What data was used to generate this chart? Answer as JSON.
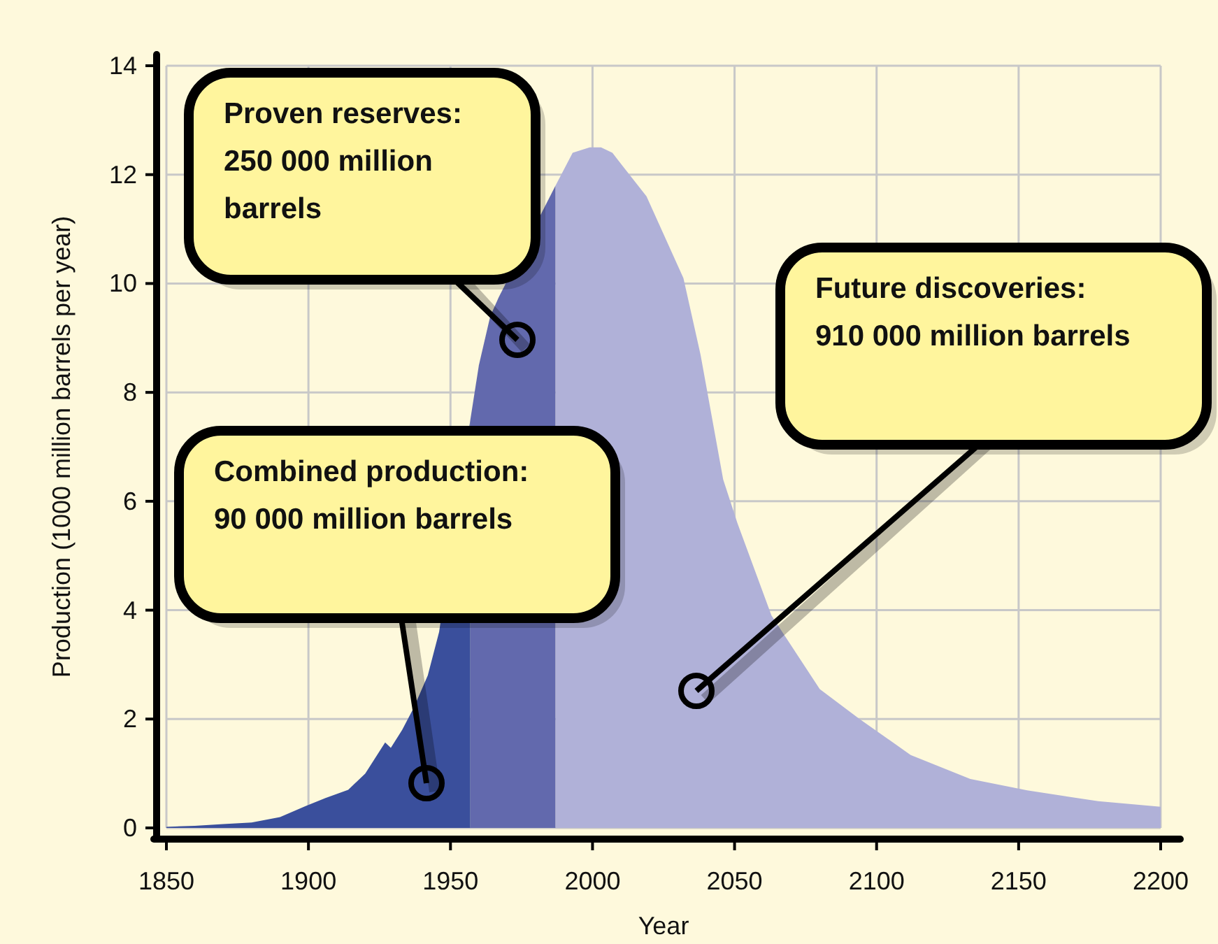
{
  "chart_data": {
    "type": "area",
    "xlabel": "Year",
    "ylabel": "Production (1000 million barrels per year)",
    "xlim": [
      1850,
      2200
    ],
    "ylim": [
      0,
      14
    ],
    "xticks": [
      1850,
      1900,
      1950,
      2000,
      2050,
      2100,
      2150,
      2200
    ],
    "yticks": [
      0,
      2,
      4,
      6,
      8,
      10,
      12,
      14
    ],
    "grid": true,
    "series": [
      {
        "color": "#3a4f9c",
        "x": [
          1850,
          1860,
          1870,
          1880,
          1890,
          1899,
          1906,
          1914,
          1920,
          1927,
          1929,
          1933,
          1937,
          1942,
          1946,
          1950,
          1954,
          1957
        ],
        "values": [
          0.02,
          0.04,
          0.07,
          0.1,
          0.2,
          0.4,
          0.55,
          0.7,
          1.0,
          1.57,
          1.47,
          1.8,
          2.2,
          2.8,
          3.6,
          null,
          null,
          7.5
        ]
      },
      {
        "color": "#6269ad",
        "x": [
          1957,
          1960,
          1964,
          1967,
          1987
        ],
        "values": [
          7.5,
          8.5,
          9.4,
          9.75,
          11.8
        ]
      },
      {
        "color": "#b0b1d8",
        "x": [
          1987,
          1993,
          1999,
          2003,
          2007,
          2010,
          2019,
          2032,
          2038,
          2046,
          2051,
          2063,
          2080,
          2094,
          2112,
          2133,
          2153,
          2178,
          2200
        ],
        "values": [
          11.8,
          12.4,
          12.5,
          12.5,
          12.4,
          12.2,
          11.6,
          10.1,
          8.7,
          6.4,
          5.6,
          3.9,
          2.55,
          2.0,
          1.34,
          0.9,
          0.69,
          0.49,
          0.39
        ]
      }
    ],
    "annotations": [
      "Proven reserves:\n250 000 million\nbarrels",
      "Combined production:\n90 000 million barrels",
      "Future discoveries:\n910 000 million barrels"
    ]
  }
}
